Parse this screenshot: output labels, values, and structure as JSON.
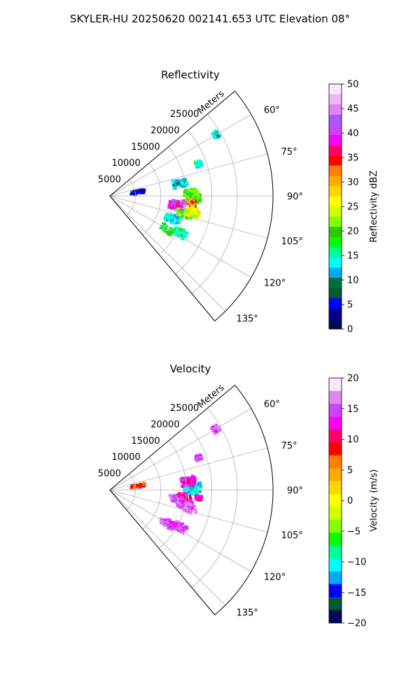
{
  "suptitle": "SKYLER-HU  20250620  002141.653 UTC Elevation 08°",
  "colors": {
    "grid": "#b0b0b0",
    "frame": "#000000",
    "refl_stops": [
      "#000a5a",
      "#00008c",
      "#0000ff",
      "#005a32",
      "#006e3c",
      "#00aaff",
      "#00ffff",
      "#00ff96",
      "#00ff00",
      "#32c800",
      "#7fff00",
      "#d2ff00",
      "#ffff00",
      "#ffd700",
      "#ffaa00",
      "#ff7f00",
      "#ff0000",
      "#ff0064",
      "#ff00ff",
      "#cc44ff",
      "#aa55ff",
      "#dd88ee",
      "#f3b5f3",
      "#ffe6ff"
    ],
    "vel_stops": [
      "#000a5a",
      "#005a32",
      "#0000ff",
      "#00aaff",
      "#00ffff",
      "#00ff96",
      "#00ff00",
      "#7fff00",
      "#d2ff00",
      "#ffff00",
      "#ffd700",
      "#ffaa00",
      "#ff7f00",
      "#ff0000",
      "#ff0064",
      "#ff00ff",
      "#cc44ff",
      "#dd88ee",
      "#ffe6ff"
    ]
  },
  "chart_data": [
    {
      "type": "heatmap",
      "subtype": "radar-ppi-sector",
      "title": "Reflectivity",
      "range_label": "Meters",
      "range_ticks": [
        "5000",
        "10000",
        "15000",
        "20000",
        "25000"
      ],
      "range_tick_values": [
        5000,
        10000,
        15000,
        20000,
        25000
      ],
      "azimuth_ticks": [
        "60°",
        "75°",
        "90°",
        "105°",
        "120°",
        "135°"
      ],
      "azimuth_tick_values": [
        60,
        75,
        90,
        105,
        120,
        135
      ],
      "azimuth_range": [
        50,
        140
      ],
      "range_max": 32000,
      "colorbar": {
        "label": "Reflectivity dBZ",
        "ticks": [
          "0",
          "5",
          "10",
          "15",
          "20",
          "25",
          "30",
          "35",
          "40",
          "45",
          "50"
        ],
        "range": [
          0,
          50
        ]
      },
      "echoes": [
        {
          "az": 92,
          "r": 16500,
          "value": 20
        },
        {
          "az": 96,
          "r": 15500,
          "value": 32
        },
        {
          "az": 97,
          "r": 13500,
          "value": 42
        },
        {
          "az": 99,
          "r": 14200,
          "value": 45
        },
        {
          "az": 98,
          "r": 13000,
          "value": 40
        },
        {
          "az": 103,
          "r": 15000,
          "value": 20
        },
        {
          "az": 88,
          "r": 16000,
          "value": 20
        },
        {
          "az": 101,
          "r": 16500,
          "value": 25
        },
        {
          "az": 80,
          "r": 14000,
          "value": 12
        },
        {
          "az": 70,
          "r": 18500,
          "value": 14
        },
        {
          "az": 60,
          "r": 24000,
          "value": 13
        },
        {
          "az": 82,
          "r": 5500,
          "value": 5
        },
        {
          "az": 120,
          "r": 13000,
          "value": 18
        },
        {
          "az": 118,
          "r": 15500,
          "value": 15
        },
        {
          "az": 110,
          "r": 13000,
          "value": 14
        }
      ]
    },
    {
      "type": "heatmap",
      "subtype": "radar-ppi-sector",
      "title": "Velocity",
      "range_label": "Meters",
      "range_ticks": [
        "5000",
        "10000",
        "15000",
        "20000",
        "25000"
      ],
      "range_tick_values": [
        5000,
        10000,
        15000,
        20000,
        25000
      ],
      "azimuth_ticks": [
        "60°",
        "75°",
        "90°",
        "105°",
        "120°",
        "135°"
      ],
      "azimuth_tick_values": [
        60,
        75,
        90,
        105,
        120,
        135
      ],
      "azimuth_range": [
        50,
        140
      ],
      "range_max": 32000,
      "colorbar": {
        "label": "Velocity (m/s)",
        "ticks": [
          "−20",
          "−15",
          "−10",
          "−5",
          "0",
          "5",
          "10",
          "15",
          "20"
        ],
        "range": [
          -20,
          20
        ]
      },
      "echoes": [
        {
          "az": 88,
          "r": 16500,
          "value": -11
        },
        {
          "az": 91,
          "r": 16000,
          "value": -10
        },
        {
          "az": 96,
          "r": 14500,
          "value": 11
        },
        {
          "az": 98,
          "r": 13200,
          "value": 15
        },
        {
          "az": 101,
          "r": 15000,
          "value": 14
        },
        {
          "az": 95,
          "r": 17500,
          "value": 12
        },
        {
          "az": 103,
          "r": 16000,
          "value": 16
        },
        {
          "az": 84,
          "r": 15500,
          "value": 13
        },
        {
          "az": 70,
          "r": 18500,
          "value": 15
        },
        {
          "az": 60,
          "r": 24000,
          "value": 15
        },
        {
          "az": 82,
          "r": 5500,
          "value": 8
        },
        {
          "az": 120,
          "r": 13000,
          "value": 15
        },
        {
          "az": 118,
          "r": 15500,
          "value": 14
        }
      ]
    }
  ]
}
